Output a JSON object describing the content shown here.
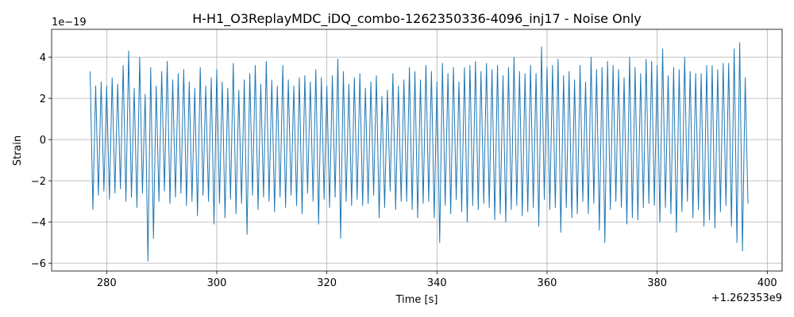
{
  "chart_data": {
    "type": "line",
    "title": "H-H1_O3ReplayMDC_iDQ_combo-1262350336-4096_inj17 - Noise Only",
    "xlabel": "Time [s]",
    "ylabel": "Strain",
    "x_offset_label": "+1.262353e9",
    "y_offset_label": "1e−19",
    "xlim": [
      270.0,
      402.7
    ],
    "ylim": [
      -6.38,
      5.35
    ],
    "xticks": [
      280,
      300,
      320,
      340,
      360,
      380,
      400
    ],
    "yticks": [
      {
        "value": -6,
        "label": "−6"
      },
      {
        "value": -4,
        "label": "−4"
      },
      {
        "value": -2,
        "label": "−2"
      },
      0,
      2,
      4
    ],
    "grid": true,
    "x": [
      277,
      277.5,
      278,
      278.5,
      279,
      279.5,
      280,
      280.5,
      281,
      281.5,
      282,
      282.5,
      283,
      283.5,
      284,
      284.5,
      285,
      285.5,
      286,
      286.5,
      287,
      287.5,
      288,
      288.5,
      289,
      289.5,
      290,
      290.5,
      291,
      291.5,
      292,
      292.5,
      293,
      293.5,
      294,
      294.5,
      295,
      295.5,
      296,
      296.5,
      297,
      297.5,
      298,
      298.5,
      299,
      299.5,
      300,
      300.5,
      301,
      301.5,
      302,
      302.5,
      303,
      303.5,
      304,
      304.5,
      305,
      305.5,
      306,
      306.5,
      307,
      307.5,
      308,
      308.5,
      309,
      309.5,
      310,
      310.5,
      311,
      311.5,
      312,
      312.5,
      313,
      313.5,
      314,
      314.5,
      315,
      315.5,
      316,
      316.5,
      317,
      317.5,
      318,
      318.5,
      319,
      319.5,
      320,
      320.5,
      321,
      321.5,
      322,
      322.5,
      323,
      323.5,
      324,
      324.5,
      325,
      325.5,
      326,
      326.5,
      327,
      327.5,
      328,
      328.5,
      329,
      329.5,
      330,
      330.5,
      331,
      331.5,
      332,
      332.5,
      333,
      333.5,
      334,
      334.5,
      335,
      335.5,
      336,
      336.5,
      337,
      337.5,
      338,
      338.5,
      339,
      339.5,
      340,
      340.5,
      341,
      341.5,
      342,
      342.5,
      343,
      343.5,
      344,
      344.5,
      345,
      345.5,
      346,
      346.5,
      347,
      347.5,
      348,
      348.5,
      349,
      349.5,
      350,
      350.5,
      351,
      351.5,
      352,
      352.5,
      353,
      353.5,
      354,
      354.5,
      355,
      355.5,
      356,
      356.5,
      357,
      357.5,
      358,
      358.5,
      359,
      359.5,
      360,
      360.5,
      361,
      361.5,
      362,
      362.5,
      363,
      363.5,
      364,
      364.5,
      365,
      365.5,
      366,
      366.5,
      367,
      367.5,
      368,
      368.5,
      369,
      369.5,
      370,
      370.5,
      371,
      371.5,
      372,
      372.5,
      373,
      373.5,
      374,
      374.5,
      375,
      375.5,
      376,
      376.5,
      377,
      377.5,
      378,
      378.5,
      379,
      379.5,
      380,
      380.5,
      381,
      381.5,
      382,
      382.5,
      383,
      383.5,
      384,
      384.5,
      385,
      385.5,
      386,
      386.5,
      387,
      387.5,
      388,
      388.5,
      389,
      389.5,
      390,
      390.5,
      391,
      391.5,
      392,
      392.5,
      393,
      393.5,
      394,
      394.5,
      395,
      395.5,
      396,
      396.5
    ],
    "series": [
      {
        "color": "#1f77b4",
        "values": [
          3.3,
          -3.4,
          2.6,
          -2.7,
          2.8,
          -2.5,
          2.6,
          -2.9,
          3.0,
          -2.6,
          2.7,
          -2.4,
          3.6,
          -3.0,
          4.3,
          -2.8,
          2.5,
          -3.3,
          4.0,
          -2.6,
          2.2,
          -5.9,
          3.5,
          -4.8,
          2.6,
          -3.0,
          3.3,
          -2.5,
          3.8,
          -3.1,
          2.9,
          -2.8,
          3.2,
          -2.6,
          3.4,
          -3.2,
          2.8,
          -3.0,
          2.5,
          -3.7,
          3.5,
          -2.7,
          2.6,
          -3.0,
          3.0,
          -4.1,
          3.4,
          -3.1,
          2.8,
          -3.8,
          2.5,
          -2.9,
          3.7,
          -3.6,
          2.4,
          -3.1,
          2.9,
          -4.6,
          3.2,
          -2.7,
          3.6,
          -3.4,
          2.7,
          -2.8,
          3.8,
          -3.0,
          2.9,
          -3.5,
          2.6,
          -2.8,
          3.6,
          -3.3,
          2.9,
          -2.7,
          2.6,
          -3.2,
          3.0,
          -3.6,
          3.1,
          -2.6,
          2.8,
          -3.0,
          3.4,
          -4.1,
          3.0,
          -2.9,
          2.6,
          -3.3,
          3.1,
          -2.8,
          3.9,
          -4.8,
          3.3,
          -3.0,
          2.7,
          -3.2,
          3.0,
          -2.9,
          3.2,
          -3.2,
          2.5,
          -3.1,
          2.8,
          -2.7,
          3.1,
          -3.8,
          2.1,
          -3.3,
          2.4,
          -2.5,
          3.2,
          -3.4,
          2.6,
          -3.0,
          2.9,
          -3.0,
          3.5,
          -3.4,
          3.3,
          -3.8,
          2.9,
          -3.1,
          3.6,
          -3.0,
          3.3,
          -3.8,
          2.8,
          -5.0,
          3.7,
          -3.2,
          3.2,
          -3.6,
          3.5,
          -2.9,
          2.8,
          -3.5,
          3.5,
          -4.0,
          3.6,
          -3.2,
          3.8,
          -3.4,
          3.3,
          -3.1,
          3.7,
          -3.3,
          3.4,
          -3.9,
          3.6,
          -3.6,
          3.1,
          -4.0,
          3.5,
          -3.4,
          4.0,
          -3.2,
          3.3,
          -3.7,
          3.2,
          -3.5,
          3.6,
          -3.3,
          3.2,
          -4.2,
          4.5,
          -2.9,
          3.5,
          -3.4,
          3.6,
          -3.3,
          3.9,
          -4.5,
          3.1,
          -3.3,
          3.3,
          -3.8,
          2.9,
          -3.6,
          3.6,
          -3.0,
          2.8,
          -3.6,
          4.0,
          -3.1,
          3.4,
          -4.4,
          3.5,
          -5.0,
          3.8,
          -3.4,
          3.6,
          -3.0,
          3.4,
          -3.3,
          3.0,
          -4.1,
          4.0,
          -3.8,
          3.5,
          -3.9,
          3.2,
          -3.3,
          3.9,
          -3.1,
          3.8,
          -3.2,
          3.6,
          -4.0,
          4.4,
          -3.3,
          3.1,
          -3.6,
          3.5,
          -4.5,
          3.4,
          -3.5,
          4.0,
          -3.0,
          3.3,
          -3.8,
          3.2,
          -3.4,
          3.2,
          -4.2,
          3.6,
          -3.9,
          3.6,
          -4.3,
          3.4,
          -3.5,
          3.7,
          -3.2,
          3.7,
          -4.2,
          4.4,
          -5.0,
          4.7,
          -5.4,
          3.0,
          -3.1
        ]
      }
    ]
  }
}
